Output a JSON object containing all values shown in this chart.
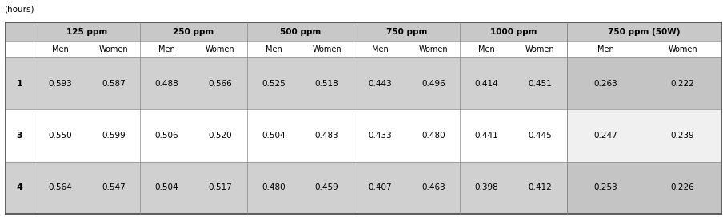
{
  "header_label": "(hours)",
  "col_groups": [
    "125 ppm",
    "250 ppm",
    "500 ppm",
    "750 ppm",
    "1000 ppm",
    "750 ppm (50W)"
  ],
  "sub_headers": [
    "Men",
    "Women",
    "Men",
    "Women",
    "Men",
    "Women",
    "Men",
    "Women",
    "Men",
    "Women",
    "Men",
    "Women"
  ],
  "row_labels": [
    "1",
    "3",
    "4"
  ],
  "data": [
    [
      "0.593",
      "0.587",
      "0.488",
      "0.566",
      "0.525",
      "0.518",
      "0.443",
      "0.496",
      "0.414",
      "0.451",
      "0.263",
      "0.222"
    ],
    [
      "0.550",
      "0.599",
      "0.506",
      "0.520",
      "0.504",
      "0.483",
      "0.433",
      "0.480",
      "0.441",
      "0.445",
      "0.247",
      "0.239"
    ],
    [
      "0.564",
      "0.547",
      "0.504",
      "0.517",
      "0.480",
      "0.459",
      "0.407",
      "0.463",
      "0.398",
      "0.412",
      "0.253",
      "0.226"
    ]
  ],
  "header_bg": "#c8c8c8",
  "subheader_bg": "#ffffff",
  "data_row1_bg": "#d0d0d0",
  "data_row2_bg": "#ffffff",
  "data_row3_bg": "#d0d0d0",
  "last_cols_row1_bg": "#c4c4c4",
  "last_cols_row2_bg": "#f0f0f0",
  "last_cols_row3_bg": "#c4c4c4",
  "fig_bg": "#ffffff",
  "line_color": "#888888",
  "top_line_color": "#555555"
}
